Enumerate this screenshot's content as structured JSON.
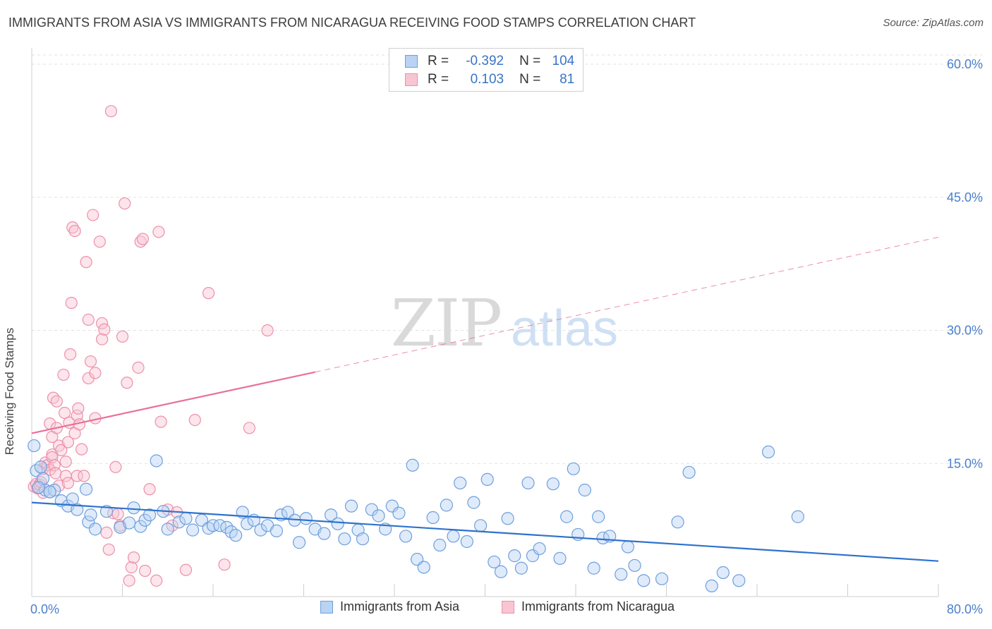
{
  "title": "IMMIGRANTS FROM ASIA VS IMMIGRANTS FROM NICARAGUA RECEIVING FOOD STAMPS CORRELATION CHART",
  "source": "Source: ZipAtlas.com",
  "watermark": {
    "zip": "ZIP",
    "atlas": "atlas"
  },
  "stats": {
    "asia": {
      "r_label": "R =",
      "r_value": "-0.392",
      "n_label": "N =",
      "n_value": "104"
    },
    "nicaragua": {
      "r_label": "R =",
      "r_value": "0.103",
      "n_label": "N =",
      "n_value": "81"
    }
  },
  "colors": {
    "asia_fill": "#b8d3f3",
    "asia_stroke": "#6e9fdc",
    "asia_line": "#2e72cc",
    "nic_fill": "#f8c5d3",
    "nic_stroke": "#ec8fab",
    "nic_line": "#e8709a",
    "axis_text": "#4a7fce",
    "grid": "#e2e2e2"
  },
  "chart_data": {
    "type": "scatter",
    "title": "IMMIGRANTS FROM ASIA VS IMMIGRANTS FROM NICARAGUA RECEIVING FOOD STAMPS CORRELATION CHART",
    "xlabel": "",
    "ylabel": "Receiving Food Stamps",
    "xlim": [
      0,
      80
    ],
    "ylim": [
      0,
      60
    ],
    "x_tick_labels": [
      "0.0%",
      "80.0%"
    ],
    "y_ticks": [
      15,
      30,
      45,
      60
    ],
    "y_tick_labels": [
      "15.0%",
      "30.0%",
      "45.0%",
      "60.0%"
    ],
    "grid": true,
    "legend_position": "bottom",
    "series": [
      {
        "name": "Immigrants from Asia",
        "r": -0.392,
        "n": 104,
        "trend": {
          "x": [
            0,
            80
          ],
          "y": [
            10.6,
            4.0
          ]
        },
        "points": [
          [
            0.2,
            17.0
          ],
          [
            0.4,
            14.2
          ],
          [
            0.8,
            14.6
          ],
          [
            1.0,
            13.3
          ],
          [
            1.2,
            12.0
          ],
          [
            1.6,
            11.8
          ],
          [
            2.0,
            12.0
          ],
          [
            2.6,
            10.8
          ],
          [
            3.2,
            10.2
          ],
          [
            3.6,
            11.0
          ],
          [
            4.0,
            9.8
          ],
          [
            4.8,
            12.1
          ],
          [
            5.0,
            8.4
          ],
          [
            5.6,
            7.6
          ],
          [
            5.2,
            9.2
          ],
          [
            6.6,
            9.6
          ],
          [
            7.8,
            7.8
          ],
          [
            8.6,
            8.3
          ],
          [
            9.0,
            10.0
          ],
          [
            9.6,
            7.9
          ],
          [
            10.0,
            8.6
          ],
          [
            10.4,
            9.2
          ],
          [
            11.0,
            15.3
          ],
          [
            11.6,
            9.6
          ],
          [
            12.0,
            7.6
          ],
          [
            13.0,
            8.4
          ],
          [
            13.6,
            8.8
          ],
          [
            14.2,
            7.5
          ],
          [
            15.0,
            8.6
          ],
          [
            15.6,
            7.7
          ],
          [
            16.0,
            8.0
          ],
          [
            16.6,
            8.0
          ],
          [
            17.2,
            7.8
          ],
          [
            17.6,
            7.3
          ],
          [
            18.0,
            6.9
          ],
          [
            18.6,
            9.5
          ],
          [
            19.0,
            8.2
          ],
          [
            19.6,
            8.6
          ],
          [
            20.2,
            7.5
          ],
          [
            20.8,
            8.0
          ],
          [
            21.6,
            7.4
          ],
          [
            22.0,
            9.2
          ],
          [
            22.6,
            9.5
          ],
          [
            23.2,
            8.6
          ],
          [
            23.6,
            6.1
          ],
          [
            24.2,
            8.8
          ],
          [
            25.0,
            7.6
          ],
          [
            25.8,
            7.1
          ],
          [
            26.4,
            9.2
          ],
          [
            27.0,
            8.2
          ],
          [
            27.6,
            6.5
          ],
          [
            28.2,
            10.2
          ],
          [
            28.8,
            7.5
          ],
          [
            29.2,
            6.5
          ],
          [
            30.0,
            9.8
          ],
          [
            30.6,
            9.1
          ],
          [
            31.2,
            7.6
          ],
          [
            31.8,
            10.2
          ],
          [
            32.4,
            9.4
          ],
          [
            33.0,
            6.8
          ],
          [
            33.6,
            14.8
          ],
          [
            34.0,
            4.2
          ],
          [
            34.6,
            3.3
          ],
          [
            35.4,
            8.9
          ],
          [
            36.0,
            5.8
          ],
          [
            36.6,
            10.3
          ],
          [
            37.2,
            6.8
          ],
          [
            37.8,
            12.8
          ],
          [
            38.4,
            6.2
          ],
          [
            39.0,
            10.6
          ],
          [
            39.6,
            8.0
          ],
          [
            40.2,
            13.2
          ],
          [
            40.8,
            3.9
          ],
          [
            41.4,
            2.8
          ],
          [
            42.0,
            8.8
          ],
          [
            42.6,
            4.6
          ],
          [
            43.2,
            3.2
          ],
          [
            43.8,
            12.8
          ],
          [
            44.2,
            4.6
          ],
          [
            44.8,
            5.4
          ],
          [
            46.0,
            12.7
          ],
          [
            46.6,
            4.3
          ],
          [
            47.2,
            9.0
          ],
          [
            47.8,
            14.4
          ],
          [
            48.2,
            7.0
          ],
          [
            48.8,
            12.0
          ],
          [
            49.6,
            3.2
          ],
          [
            50.0,
            9.0
          ],
          [
            50.4,
            6.6
          ],
          [
            51.0,
            6.8
          ],
          [
            52.0,
            2.5
          ],
          [
            52.6,
            5.6
          ],
          [
            53.2,
            3.5
          ],
          [
            54.0,
            1.8
          ],
          [
            55.6,
            2.0
          ],
          [
            57.0,
            8.4
          ],
          [
            58.0,
            14.0
          ],
          [
            60.0,
            1.2
          ],
          [
            61.0,
            2.7
          ],
          [
            62.4,
            1.8
          ],
          [
            65.0,
            16.3
          ],
          [
            67.6,
            9.0
          ],
          [
            0.6,
            12.3
          ],
          [
            1.6,
            11.8
          ]
        ]
      },
      {
        "name": "Immigrants from Nicaragua",
        "r": 0.103,
        "n": 81,
        "trend": {
          "x": [
            0,
            25
          ],
          "y": [
            18.4,
            25.3
          ]
        },
        "trend_extension": {
          "x": [
            25,
            80
          ],
          "y": [
            25.3,
            40.5
          ]
        },
        "points": [
          [
            0.2,
            12.4
          ],
          [
            0.4,
            12.7
          ],
          [
            0.5,
            12.2
          ],
          [
            0.7,
            12.6
          ],
          [
            0.8,
            12.9
          ],
          [
            1.0,
            14.4
          ],
          [
            1.0,
            11.7
          ],
          [
            1.2,
            15.1
          ],
          [
            1.4,
            14.8
          ],
          [
            1.6,
            19.5
          ],
          [
            1.6,
            14.3
          ],
          [
            1.8,
            16.0
          ],
          [
            1.8,
            18.0
          ],
          [
            1.8,
            15.7
          ],
          [
            1.9,
            22.4
          ],
          [
            2.0,
            14.8
          ],
          [
            2.1,
            13.9
          ],
          [
            2.2,
            22.0
          ],
          [
            2.2,
            19.0
          ],
          [
            2.4,
            12.5
          ],
          [
            2.4,
            17.0
          ],
          [
            2.6,
            16.5
          ],
          [
            2.8,
            25.0
          ],
          [
            2.9,
            20.7
          ],
          [
            3.0,
            15.2
          ],
          [
            3.0,
            13.6
          ],
          [
            3.2,
            12.8
          ],
          [
            3.2,
            17.4
          ],
          [
            3.3,
            19.6
          ],
          [
            3.4,
            27.3
          ],
          [
            3.5,
            33.1
          ],
          [
            3.6,
            41.6
          ],
          [
            3.8,
            41.2
          ],
          [
            3.8,
            18.4
          ],
          [
            4.0,
            13.6
          ],
          [
            4.0,
            20.4
          ],
          [
            4.1,
            21.2
          ],
          [
            4.2,
            19.4
          ],
          [
            4.4,
            16.6
          ],
          [
            4.6,
            13.6
          ],
          [
            4.8,
            37.7
          ],
          [
            5.0,
            31.2
          ],
          [
            5.0,
            24.6
          ],
          [
            5.2,
            26.5
          ],
          [
            5.4,
            43.0
          ],
          [
            5.6,
            20.1
          ],
          [
            5.6,
            25.2
          ],
          [
            6.0,
            40.0
          ],
          [
            6.2,
            30.8
          ],
          [
            6.2,
            29.0
          ],
          [
            6.4,
            30.1
          ],
          [
            6.6,
            7.2
          ],
          [
            6.8,
            5.3
          ],
          [
            7.0,
            54.7
          ],
          [
            7.2,
            9.4
          ],
          [
            7.4,
            14.6
          ],
          [
            7.6,
            9.3
          ],
          [
            7.8,
            8.0
          ],
          [
            8.0,
            29.3
          ],
          [
            8.2,
            44.3
          ],
          [
            8.4,
            24.1
          ],
          [
            8.6,
            1.8
          ],
          [
            8.8,
            3.3
          ],
          [
            9.0,
            4.4
          ],
          [
            9.4,
            25.8
          ],
          [
            9.6,
            40.0
          ],
          [
            9.8,
            40.3
          ],
          [
            10.0,
            2.9
          ],
          [
            10.4,
            12.1
          ],
          [
            11.0,
            1.8
          ],
          [
            11.2,
            41.1
          ],
          [
            11.4,
            19.7
          ],
          [
            12.0,
            9.8
          ],
          [
            12.4,
            8.0
          ],
          [
            12.8,
            9.5
          ],
          [
            13.6,
            3.0
          ],
          [
            14.4,
            19.9
          ],
          [
            15.6,
            34.2
          ],
          [
            17.0,
            3.6
          ],
          [
            19.2,
            19.0
          ],
          [
            20.8,
            30.0
          ]
        ]
      }
    ]
  },
  "legend": {
    "asia": "Immigrants from Asia",
    "nicaragua": "Immigrants from Nicaragua"
  }
}
